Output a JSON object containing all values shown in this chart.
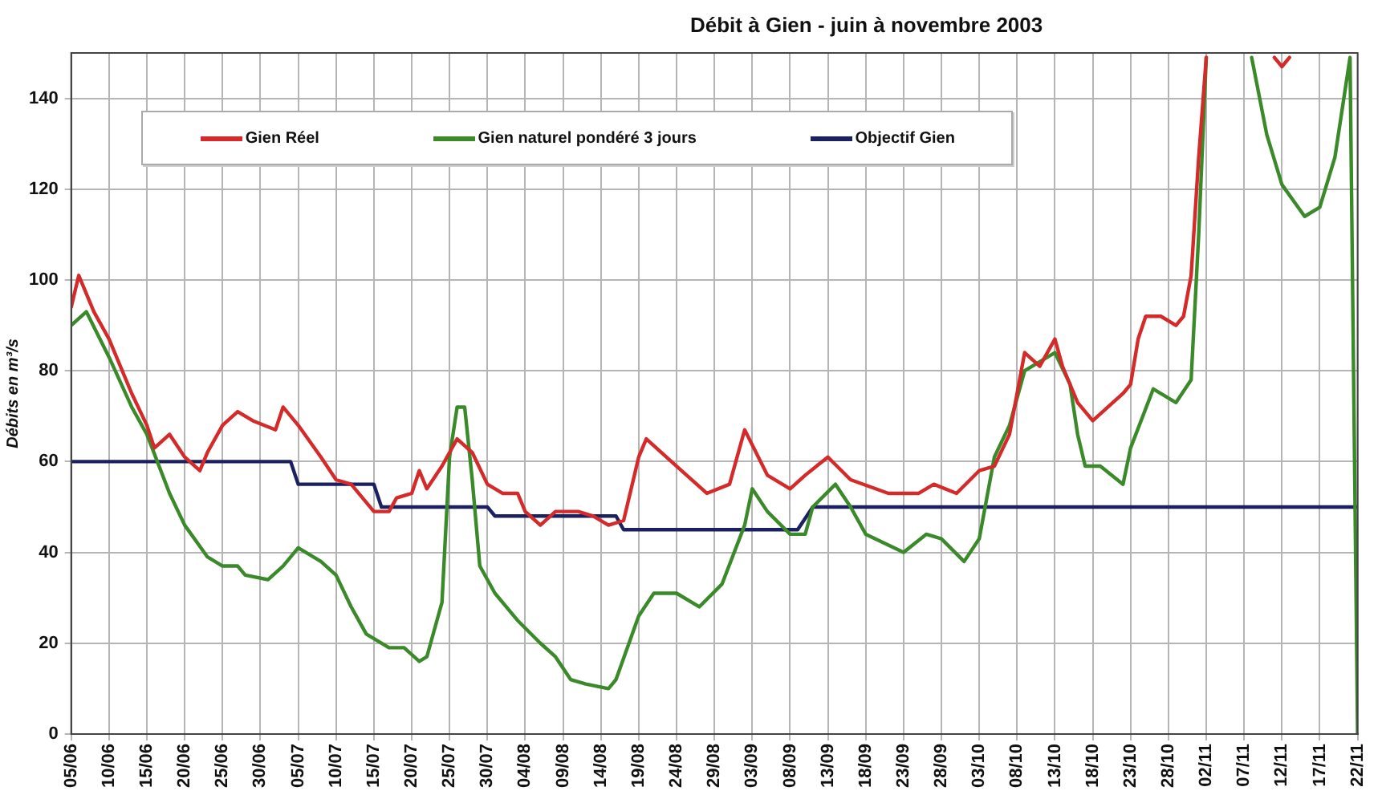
{
  "chart_data": {
    "type": "line",
    "title": "Débit à Gien - juin à novembre 2003",
    "ylabel": "Débits en m³/s",
    "xlim": [
      "--06-05",
      "--11-22"
    ],
    "xticks": [
      {
        "value": "--06-05",
        "label": "05/06"
      },
      {
        "value": "--06-10",
        "label": "10/06"
      },
      {
        "value": "--06-15",
        "label": "15/06"
      },
      {
        "value": "--06-20",
        "label": "20/06"
      },
      {
        "value": "--06-25",
        "label": "25/06"
      },
      {
        "value": "--06-30",
        "label": "30/06"
      },
      {
        "value": "--07-05",
        "label": "05/07"
      },
      {
        "value": "--07-10",
        "label": "10/07"
      },
      {
        "value": "--07-15",
        "label": "15/07"
      },
      {
        "value": "--07-20",
        "label": "20/07"
      },
      {
        "value": "--07-25",
        "label": "25/07"
      },
      {
        "value": "--07-30",
        "label": "30/07"
      },
      {
        "value": "--08-04",
        "label": "04/08"
      },
      {
        "value": "--08-09",
        "label": "09/08"
      },
      {
        "value": "--08-14",
        "label": "14/08"
      },
      {
        "value": "--08-19",
        "label": "19/08"
      },
      {
        "value": "--08-24",
        "label": "24/08"
      },
      {
        "value": "--08-29",
        "label": "29/08"
      },
      {
        "value": "--09-03",
        "label": "03/09"
      },
      {
        "value": "--09-08",
        "label": "08/09"
      },
      {
        "value": "--09-13",
        "label": "13/09"
      },
      {
        "value": "--09-18",
        "label": "18/09"
      },
      {
        "value": "--09-23",
        "label": "23/09"
      },
      {
        "value": "--09-28",
        "label": "28/09"
      },
      {
        "value": "--10-03",
        "label": "03/10"
      },
      {
        "value": "--10-08",
        "label": "08/10"
      },
      {
        "value": "--10-13",
        "label": "13/10"
      },
      {
        "value": "--10-18",
        "label": "18/10"
      },
      {
        "value": "--10-23",
        "label": "23/10"
      },
      {
        "value": "--10-28",
        "label": "28/10"
      },
      {
        "value": "--11-02",
        "label": "02/11"
      },
      {
        "value": "--11-07",
        "label": "07/11"
      },
      {
        "value": "--11-12",
        "label": "12/11"
      },
      {
        "value": "--11-17",
        "label": "17/11"
      },
      {
        "value": "--11-22",
        "label": "22/11"
      }
    ],
    "ylim": [
      0,
      150
    ],
    "yticks": [
      0,
      20,
      40,
      60,
      80,
      100,
      120,
      140
    ],
    "grid": true,
    "legend": "top",
    "marker": "none",
    "line_style": "solid",
    "series": [
      {
        "name": "Gien Réel",
        "color": "#d42a2a",
        "x": [
          "--06-05",
          "--06-06",
          "--06-08",
          "--06-10",
          "--06-13",
          "--06-15",
          "--06-16",
          "--06-18",
          "--06-20",
          "--06-22",
          "--06-23",
          "--06-25",
          "--06-27",
          "--06-29",
          "--07-02",
          "--07-03",
          "--07-05",
          "--07-08",
          "--07-10",
          "--07-12",
          "--07-15",
          "--07-17",
          "--07-18",
          "--07-20",
          "--07-21",
          "--07-22",
          "--07-24",
          "--07-26",
          "--07-28",
          "--07-30",
          "--08-01",
          "--08-03",
          "--08-04",
          "--08-06",
          "--08-08",
          "--08-11",
          "--08-13",
          "--08-15",
          "--08-17",
          "--08-19",
          "--08-20",
          "--08-22",
          "--08-24",
          "--08-28",
          "--08-31",
          "--09-02",
          "--09-05",
          "--09-08",
          "--09-10",
          "--09-13",
          "--09-16",
          "--09-21",
          "--09-25",
          "--09-27",
          "--09-30",
          "--10-03",
          "--10-05",
          "--10-07",
          "--10-09",
          "--10-11",
          "--10-13",
          "--10-14",
          "--10-16",
          "--10-18",
          "--10-20",
          "--10-22",
          "--10-23",
          "--10-24",
          "--10-25",
          "--10-27",
          "--10-29",
          "--10-30",
          "--10-31",
          "--11-01",
          "--11-02",
          "--11-07",
          "--11-11",
          "--11-12",
          "--11-13"
        ],
        "values": [
          94,
          101,
          93,
          87,
          75,
          68,
          63,
          66,
          61,
          58,
          62,
          68,
          71,
          69,
          67,
          72,
          68,
          61,
          56,
          55,
          49,
          49,
          52,
          53,
          58,
          54,
          59,
          65,
          62,
          55,
          53,
          53,
          49,
          46,
          49,
          49,
          48,
          46,
          47,
          61,
          65,
          62,
          59,
          53,
          55,
          67,
          57,
          54,
          57,
          61,
          56,
          53,
          53,
          55,
          53,
          58,
          59,
          66,
          84,
          81,
          87,
          81,
          73,
          69,
          72,
          75,
          77,
          87,
          92,
          92,
          90,
          92,
          101,
          127,
          149,
          null,
          149,
          147,
          149
        ]
      },
      {
        "name": "Gien naturel pondéré 3 jours",
        "color": "#3a8a2a",
        "x": [
          "--06-05",
          "--06-07",
          "--06-10",
          "--06-13",
          "--06-15",
          "--06-18",
          "--06-20",
          "--06-23",
          "--06-25",
          "--06-27",
          "--06-28",
          "--07-01",
          "--07-03",
          "--07-05",
          "--07-08",
          "--07-10",
          "--07-12",
          "--07-14",
          "--07-17",
          "--07-19",
          "--07-21",
          "--07-22",
          "--07-24",
          "--07-25",
          "--07-26",
          "--07-27",
          "--07-28",
          "--07-29",
          "--07-31",
          "--08-03",
          "--08-06",
          "--08-08",
          "--08-10",
          "--08-12",
          "--08-15",
          "--08-16",
          "--08-19",
          "--08-21",
          "--08-24",
          "--08-27",
          "--08-30",
          "--09-02",
          "--09-03",
          "--09-05",
          "--09-08",
          "--09-10",
          "--09-11",
          "--09-14",
          "--09-16",
          "--09-18",
          "--09-23",
          "--09-26",
          "--09-28",
          "--10-01",
          "--10-03",
          "--10-05",
          "--10-07",
          "--10-09",
          "--10-13",
          "--10-15",
          "--10-16",
          "--10-17",
          "--10-19",
          "--10-22",
          "--10-23",
          "--10-26",
          "--10-29",
          "--10-31",
          "--11-01",
          "--11-02",
          "--11-05",
          "--11-08",
          "--11-10",
          "--11-12",
          "--11-15",
          "--11-17",
          "--11-19",
          "--11-21",
          "--11-22"
        ],
        "values": [
          90,
          93,
          83,
          72,
          66,
          53,
          46,
          39,
          37,
          37,
          35,
          34,
          37,
          41,
          38,
          35,
          28,
          22,
          19,
          19,
          16,
          17,
          29,
          61,
          72,
          72,
          56,
          37,
          31,
          25,
          20,
          17,
          12,
          11,
          10,
          12,
          26,
          31,
          31,
          28,
          33,
          46,
          54,
          49,
          44,
          44,
          50,
          55,
          50,
          44,
          40,
          44,
          43,
          38,
          43,
          61,
          68,
          80,
          84,
          77,
          66,
          59,
          59,
          55,
          63,
          76,
          73,
          78,
          110,
          149,
          null,
          149,
          132,
          121,
          114,
          116,
          127,
          149,
          0
        ]
      },
      {
        "name": "Objectif Gien",
        "color": "#1a2060",
        "x": [
          "--06-05",
          "--07-04",
          "--07-05",
          "--07-15",
          "--07-16",
          "--07-30",
          "--07-31",
          "--08-16",
          "--08-17",
          "--09-09",
          "--09-11",
          "--11-22"
        ],
        "values": [
          60,
          60,
          55,
          55,
          50,
          50,
          48,
          48,
          45,
          45,
          50,
          50
        ]
      }
    ]
  }
}
